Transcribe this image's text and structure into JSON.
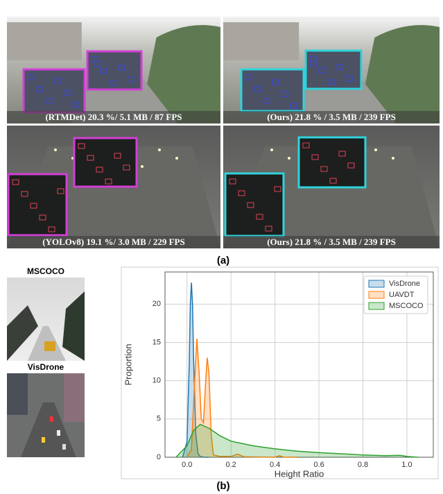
{
  "panel_a": {
    "images": [
      {
        "caption": "(RTMDet) 20.3 %/ 5.1 MB / 87 FPS"
      },
      {
        "caption": "(Ours) 21.8 % / 3.5 MB / 239 FPS"
      },
      {
        "caption": "(YOLOv8) 19.1 %/ 3.0 MB / 229 FPS"
      },
      {
        "caption": "(Ours) 21.8 % / 3.5 MB / 239 FPS"
      }
    ],
    "label": "(a)"
  },
  "panel_b": {
    "thumbnails": [
      {
        "title": "MSCOCO"
      },
      {
        "title": "VisDrone"
      }
    ],
    "label": "(b)"
  },
  "chart_data": {
    "type": "area",
    "xlabel": "Height Ratio",
    "ylabel": "Proportion",
    "xlim": [
      -0.1,
      1.12
    ],
    "ylim": [
      0,
      24.2
    ],
    "xticks": [
      {
        "value": 0,
        "label": "0.0"
      },
      0.2,
      0.4,
      0.6,
      0.8,
      {
        "value": 1,
        "label": "1.0"
      }
    ],
    "yticks": [
      0,
      5,
      10,
      15,
      20
    ],
    "grid": true,
    "legend": "upper right",
    "series": [
      {
        "name": "VisDrone",
        "color": "#1f77b4",
        "x": [
          -0.02,
          0,
          0.01,
          0.015,
          0.02,
          0.025,
          0.03,
          0.04,
          0.05,
          0.06,
          0.08,
          0.1
        ],
        "values": [
          0,
          2,
          12,
          20,
          22.8,
          20,
          13,
          3,
          0.5,
          0.1,
          0,
          0
        ]
      },
      {
        "name": "UAVDT",
        "color": "#ff7f0e",
        "x": [
          0,
          0.02,
          0.035,
          0.045,
          0.055,
          0.065,
          0.075,
          0.085,
          0.092,
          0.1,
          0.11,
          0.12,
          0.15,
          0.2,
          0.23,
          0.26,
          0.4,
          0.42,
          0.44,
          0.5
        ],
        "values": [
          0,
          1,
          10,
          15.5,
          11,
          5,
          4.5,
          10,
          13,
          11,
          3,
          0.3,
          0.1,
          0.1,
          0.4,
          0.05,
          0,
          0.2,
          0,
          0
        ]
      },
      {
        "name": "MSCOCO",
        "color": "#2ca02c",
        "x": [
          -0.05,
          0,
          0.03,
          0.06,
          0.1,
          0.15,
          0.2,
          0.3,
          0.4,
          0.5,
          0.6,
          0.7,
          0.8,
          0.9,
          0.97,
          1.0,
          1.05
        ],
        "values": [
          0,
          1.5,
          3.5,
          4.3,
          3.8,
          2.8,
          2.1,
          1.5,
          1.1,
          0.8,
          0.6,
          0.45,
          0.3,
          0.2,
          0.25,
          0.1,
          0
        ]
      }
    ]
  }
}
